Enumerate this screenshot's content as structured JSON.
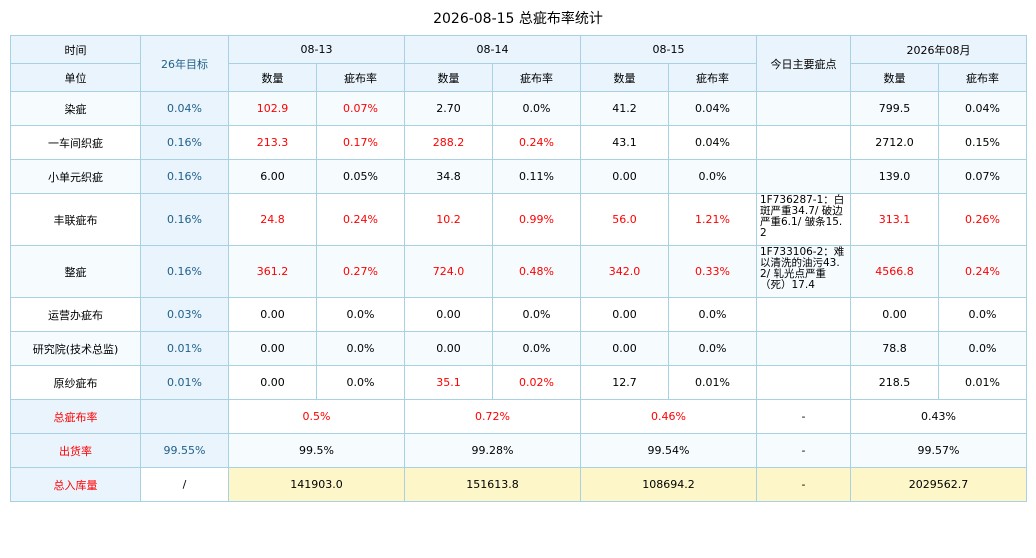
{
  "title": "2026-08-15 总疵布率统计",
  "header": {
    "time_label": "时间",
    "unit_label": "单位",
    "target_label": "26年目标",
    "dates": [
      "08-13",
      "08-14",
      "08-15"
    ],
    "notes_label": "今日主要疵点",
    "month_label": "2026年08月",
    "qty_label": "数量",
    "rate_label": "疵布率"
  },
  "rows": [
    {
      "name": "染疵",
      "target": "0.04%",
      "d1": {
        "qty": "102.9",
        "rate": "0.07%"
      },
      "d2": {
        "qty": "2.70",
        "rate": "0.0%"
      },
      "d3": {
        "qty": "41.2",
        "rate": "0.04%"
      },
      "note": "",
      "month": {
        "qty": "799.5",
        "rate": "0.04%"
      }
    },
    {
      "name": "一车间织疵",
      "target": "0.16%",
      "d1": {
        "qty": "213.3",
        "rate": "0.17%"
      },
      "d2": {
        "qty": "288.2",
        "rate": "0.24%"
      },
      "d3": {
        "qty": "43.1",
        "rate": "0.04%"
      },
      "note": "",
      "month": {
        "qty": "2712.0",
        "rate": "0.15%"
      }
    },
    {
      "name": "小单元织疵",
      "target": "0.16%",
      "d1": {
        "qty": "6.00",
        "rate": "0.05%"
      },
      "d2": {
        "qty": "34.8",
        "rate": "0.11%"
      },
      "d3": {
        "qty": "0.00",
        "rate": "0.0%"
      },
      "note": "",
      "month": {
        "qty": "139.0",
        "rate": "0.07%"
      }
    },
    {
      "name": "丰联疵布",
      "target": "0.16%",
      "d1": {
        "qty": "24.8",
        "rate": "0.24%"
      },
      "d2": {
        "qty": "10.2",
        "rate": "0.99%"
      },
      "d3": {
        "qty": "56.0",
        "rate": "1.21%"
      },
      "note": "1F736287-1：白斑严重34.7/ 破边严重6.1/ 皱条15.2",
      "month": {
        "qty": "313.1",
        "rate": "0.26%"
      }
    },
    {
      "name": "整疵",
      "target": "0.16%",
      "d1": {
        "qty": "361.2",
        "rate": "0.27%"
      },
      "d2": {
        "qty": "724.0",
        "rate": "0.48%"
      },
      "d3": {
        "qty": "342.0",
        "rate": "0.33%"
      },
      "note": "1F733106-2：难以清洗的油污43.2/ 轧光点严重（死）17.4",
      "month": {
        "qty": "4566.8",
        "rate": "0.24%"
      }
    },
    {
      "name": "运营办疵布",
      "target": "0.03%",
      "d1": {
        "qty": "0.00",
        "rate": "0.0%"
      },
      "d2": {
        "qty": "0.00",
        "rate": "0.0%"
      },
      "d3": {
        "qty": "0.00",
        "rate": "0.0%"
      },
      "note": "",
      "month": {
        "qty": "0.00",
        "rate": "0.0%"
      }
    },
    {
      "name": "研究院(技术总监)",
      "target": "0.01%",
      "d1": {
        "qty": "0.00",
        "rate": "0.0%"
      },
      "d2": {
        "qty": "0.00",
        "rate": "0.0%"
      },
      "d3": {
        "qty": "0.00",
        "rate": "0.0%"
      },
      "note": "",
      "month": {
        "qty": "78.8",
        "rate": "0.0%"
      }
    },
    {
      "name": "原纱疵布",
      "target": "0.01%",
      "d1": {
        "qty": "0.00",
        "rate": "0.0%"
      },
      "d2": {
        "qty": "35.1",
        "rate": "0.02%"
      },
      "d3": {
        "qty": "12.7",
        "rate": "0.01%"
      },
      "note": "",
      "month": {
        "qty": "218.5",
        "rate": "0.01%"
      }
    }
  ],
  "totals": {
    "defect_rate": {
      "label": "总疵布率",
      "target": "",
      "d1": "0.5%",
      "d2": "0.72%",
      "d3": "0.46%",
      "note": "-",
      "month": "0.43%"
    },
    "shipping_rate": {
      "label": "出货率",
      "target": "99.55%",
      "d1": "99.5%",
      "d2": "99.28%",
      "d3": "99.54%",
      "note": "-",
      "month": "99.57%"
    },
    "stock_in": {
      "label": "总入库量",
      "target": "/",
      "d1": "141903.0",
      "d2": "151613.8",
      "d3": "108694.2",
      "note": "-",
      "month": "2029562.7"
    }
  },
  "colors": {
    "header_bg": "#eaf4fc",
    "border": "#a8d1e3",
    "highlight_red": "#ff0000",
    "target_text": "#1f5f8a",
    "stock_bg": "#fdf6c8"
  }
}
